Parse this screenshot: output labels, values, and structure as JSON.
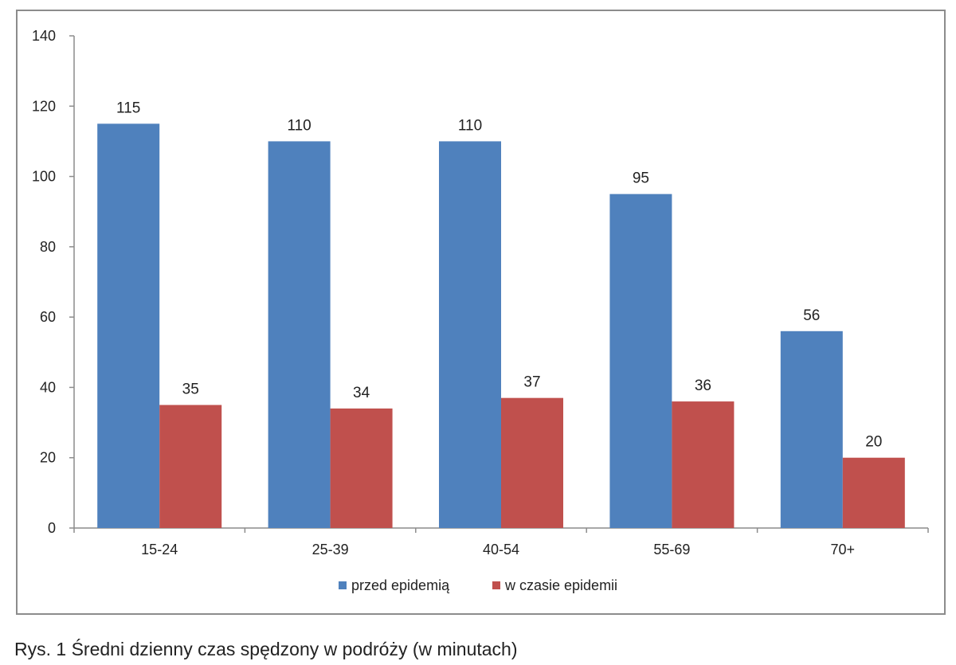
{
  "caption": "Rys. 1 Średni dzienny czas spędzony w podróży (w minutach)",
  "chart_data": {
    "type": "bar",
    "categories": [
      "15-24",
      "25-39",
      "40-54",
      "55-69",
      "70+"
    ],
    "series": [
      {
        "name": "przed epidemią",
        "values": [
          115,
          110,
          110,
          95,
          56
        ],
        "color": "#4f81bd"
      },
      {
        "name": "w czasie epidemii",
        "values": [
          35,
          34,
          37,
          36,
          20
        ],
        "color": "#c0504d"
      }
    ],
    "title": "",
    "xlabel": "",
    "ylabel": "",
    "ylim": [
      0,
      140
    ],
    "yticks": [
      0,
      20,
      40,
      60,
      80,
      100,
      120,
      140
    ],
    "grid": false,
    "legend_position": "bottom",
    "data_labels": true
  }
}
